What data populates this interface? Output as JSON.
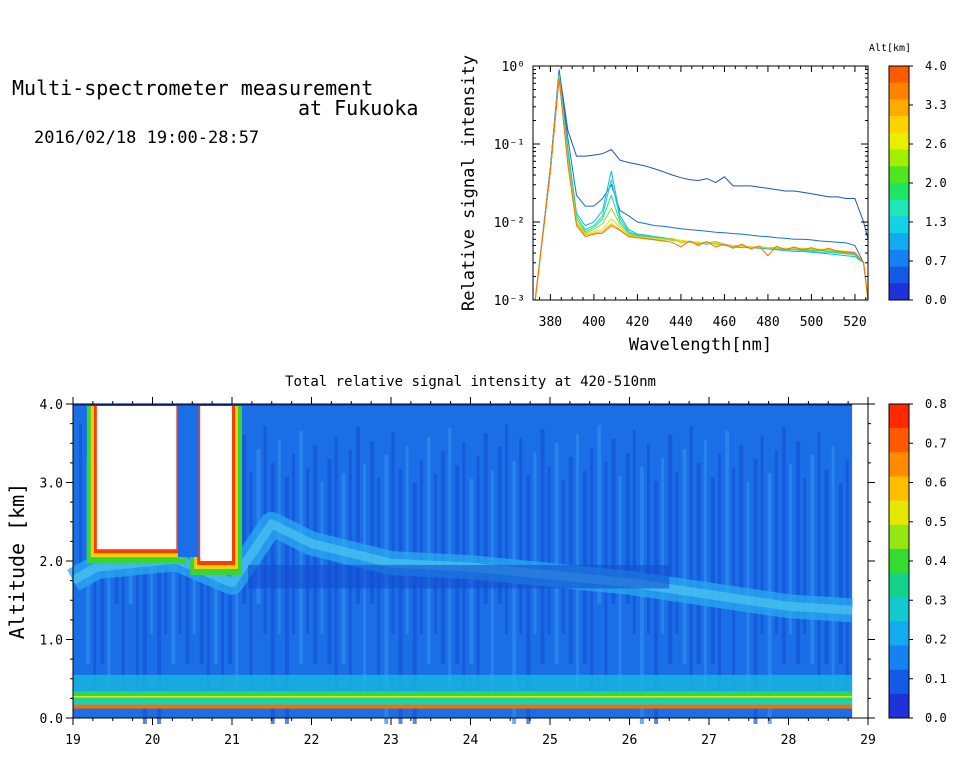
{
  "header": {
    "title_line1": "Multi-spectrometer measurement",
    "title_line2": "at Fukuoka",
    "date_range": "2016/02/18 19:00-28:57"
  },
  "chart_data": [
    {
      "type": "line",
      "xlabel": "Wavelength[nm]",
      "ylabel": "Relative signal intensity",
      "xlim": [
        372,
        526
      ],
      "x_ticks": [
        "380",
        "400",
        "420",
        "440",
        "460",
        "480",
        "500",
        "520"
      ],
      "ylim_log10": [
        -3,
        0
      ],
      "y_scale": "log",
      "y_ticks": [
        "10⁻³",
        "10⁻²",
        "10⁻¹",
        "10⁰"
      ],
      "colorbar": {
        "label": "Alt[km]",
        "ticks": [
          "4.0",
          "3.3",
          "2.6",
          "2.0",
          "1.3",
          "0.7",
          "0.0"
        ],
        "colors": [
          "#ff5a00",
          "#ff8200",
          "#ffaa00",
          "#ffd200",
          "#e6f000",
          "#a0f000",
          "#50e61e",
          "#1ee664",
          "#1ee6b4",
          "#14d2e6",
          "#14aaf0",
          "#1482f0",
          "#145ae6",
          "#1e32dc"
        ]
      },
      "x": [
        373,
        380,
        384,
        388,
        392,
        396,
        400,
        404,
        408,
        412,
        416,
        420,
        424,
        428,
        432,
        436,
        440,
        444,
        448,
        452,
        456,
        460,
        464,
        468,
        472,
        476,
        480,
        484,
        488,
        492,
        496,
        500,
        504,
        508,
        512,
        516,
        520,
        524,
        526
      ],
      "series": [
        {
          "color": "#1e50c8",
          "values": [
            0.001,
            0.05,
            0.9,
            0.15,
            0.07,
            0.07,
            0.072,
            0.075,
            0.085,
            0.062,
            0.058,
            0.055,
            0.052,
            0.048,
            0.044,
            0.04,
            0.037,
            0.035,
            0.034,
            0.036,
            0.032,
            0.038,
            0.029,
            0.029,
            0.029,
            0.028,
            0.027,
            0.026,
            0.025,
            0.025,
            0.024,
            0.023,
            0.022,
            0.021,
            0.021,
            0.02,
            0.02,
            0.01,
            0.006
          ]
        },
        {
          "color": "#146ee6",
          "values": [
            0.001,
            0.05,
            0.85,
            0.12,
            0.022,
            0.016,
            0.016,
            0.02,
            0.03,
            0.014,
            0.012,
            0.01,
            0.0095,
            0.009,
            0.0088,
            0.0085,
            0.0082,
            0.008,
            0.0078,
            0.0076,
            0.0074,
            0.0073,
            0.0071,
            0.007,
            0.0068,
            0.0066,
            0.0065,
            0.0063,
            0.0062,
            0.006,
            0.006,
            0.0059,
            0.0057,
            0.0056,
            0.0055,
            0.0054,
            0.005,
            0.003,
            0.001
          ]
        },
        {
          "color": "#14b4e6",
          "values": [
            0.001,
            0.045,
            0.8,
            0.09,
            0.013,
            0.009,
            0.01,
            0.014,
            0.045,
            0.012,
            0.008,
            0.007,
            0.0068,
            0.0065,
            0.0063,
            0.006,
            0.0058,
            0.0055,
            0.0054,
            0.0052,
            0.0055,
            0.005,
            0.0048,
            0.0047,
            0.0047,
            0.0046,
            0.0045,
            0.0044,
            0.0043,
            0.0042,
            0.0042,
            0.0041,
            0.004,
            0.0039,
            0.0038,
            0.0037,
            0.0036,
            0.003,
            0.001
          ]
        },
        {
          "color": "#1ed2c8",
          "values": [
            0.001,
            0.045,
            0.78,
            0.08,
            0.012,
            0.008,
            0.009,
            0.012,
            0.035,
            0.011,
            0.0075,
            0.0068,
            0.0066,
            0.0064,
            0.0062,
            0.006,
            0.0058,
            0.0056,
            0.0055,
            0.0054,
            0.0056,
            0.0052,
            0.005,
            0.0049,
            0.0048,
            0.0047,
            0.0046,
            0.0045,
            0.0044,
            0.0044,
            0.0043,
            0.0042,
            0.0041,
            0.0041,
            0.004,
            0.0039,
            0.0038,
            0.003,
            0.001
          ]
        },
        {
          "color": "#1ee678",
          "values": [
            0.001,
            0.045,
            0.75,
            0.07,
            0.011,
            0.0075,
            0.0085,
            0.011,
            0.022,
            0.01,
            0.0072,
            0.0067,
            0.0065,
            0.0063,
            0.0061,
            0.0059,
            0.0057,
            0.0055,
            0.0054,
            0.0053,
            0.0055,
            0.0051,
            0.0049,
            0.0049,
            0.0048,
            0.0047,
            0.0046,
            0.0046,
            0.0045,
            0.0045,
            0.0044,
            0.0043,
            0.0043,
            0.0042,
            0.0041,
            0.004,
            0.0039,
            0.003,
            0.001
          ]
        },
        {
          "color": "#78e632",
          "values": [
            0.001,
            0.045,
            0.73,
            0.065,
            0.01,
            0.0072,
            0.008,
            0.0095,
            0.015,
            0.0092,
            0.007,
            0.0066,
            0.0064,
            0.0062,
            0.006,
            0.0058,
            0.0057,
            0.0055,
            0.0054,
            0.0053,
            0.0054,
            0.005,
            0.0049,
            0.0048,
            0.0048,
            0.0047,
            0.0047,
            0.0046,
            0.0046,
            0.0045,
            0.0045,
            0.0044,
            0.0044,
            0.0043,
            0.0042,
            0.0041,
            0.004,
            0.003,
            0.001
          ]
        },
        {
          "color": "#dce614",
          "values": [
            0.001,
            0.045,
            0.72,
            0.06,
            0.01,
            0.007,
            0.0075,
            0.008,
            0.011,
            0.0085,
            0.0068,
            0.0065,
            0.0063,
            0.0062,
            0.006,
            0.0061,
            0.0058,
            0.0056,
            0.0055,
            0.0053,
            0.0055,
            0.0051,
            0.005,
            0.0049,
            0.0048,
            0.0048,
            0.0047,
            0.0047,
            0.0046,
            0.0046,
            0.0046,
            0.0045,
            0.0045,
            0.0044,
            0.0043,
            0.0042,
            0.0041,
            0.003,
            0.001
          ]
        },
        {
          "color": "#ffb400",
          "values": [
            0.001,
            0.045,
            0.71,
            0.058,
            0.0095,
            0.0068,
            0.0072,
            0.0075,
            0.0095,
            0.008,
            0.0066,
            0.0064,
            0.0062,
            0.006,
            0.0058,
            0.0062,
            0.0054,
            0.0056,
            0.0052,
            0.0055,
            0.0052,
            0.005,
            0.0049,
            0.0051,
            0.0047,
            0.0049,
            0.0046,
            0.0048,
            0.0045,
            0.0047,
            0.0045,
            0.0046,
            0.0044,
            0.0045,
            0.0043,
            0.0042,
            0.0041,
            0.003,
            0.001
          ]
        },
        {
          "color": "#ff6e00",
          "values": [
            0.001,
            0.045,
            0.7,
            0.055,
            0.009,
            0.0065,
            0.007,
            0.0072,
            0.009,
            0.0078,
            0.0065,
            0.0063,
            0.0061,
            0.0059,
            0.0057,
            0.0055,
            0.0048,
            0.0057,
            0.005,
            0.0056,
            0.0048,
            0.0052,
            0.0046,
            0.0052,
            0.0045,
            0.0049,
            0.0037,
            0.0049,
            0.0044,
            0.0048,
            0.0044,
            0.0047,
            0.0043,
            0.0046,
            0.0042,
            0.0041,
            0.004,
            0.003,
            0.001
          ]
        }
      ]
    },
    {
      "type": "heatmap",
      "title": "Total relative signal intensity at 420-510nm",
      "xlim": [
        19,
        29
      ],
      "x_ticks": [
        "19",
        "20",
        "21",
        "22",
        "23",
        "24",
        "25",
        "26",
        "27",
        "28",
        "29"
      ],
      "ylabel": "Altitude [km]",
      "ylim": [
        0,
        4
      ],
      "y_ticks": [
        "0.0",
        "1.0",
        "2.0",
        "3.0",
        "4.0"
      ],
      "data_x_end": 28.8,
      "saturated_regions": [
        {
          "x_start": 19.3,
          "x_end": 20.3,
          "y_bottom": 2.15
        },
        {
          "x_start": 20.6,
          "x_end": 21.0,
          "y_bottom": 2.0
        }
      ],
      "cloud_base_km": [
        [
          19.0,
          1.88
        ],
        [
          19.3,
          2.05
        ],
        [
          20.3,
          2.15
        ],
        [
          21.0,
          1.85
        ],
        [
          21.5,
          2.6
        ],
        [
          22.0,
          2.35
        ],
        [
          23.0,
          2.1
        ],
        [
          24.0,
          2.05
        ],
        [
          25.0,
          1.95
        ],
        [
          26.0,
          1.85
        ],
        [
          27.0,
          1.7
        ],
        [
          28.0,
          1.55
        ],
        [
          28.8,
          1.5
        ]
      ],
      "colorbar": {
        "ticks": [
          "0.8",
          "0.7",
          "0.6",
          "0.5",
          "0.4",
          "0.3",
          "0.2",
          "0.1",
          "0.0"
        ],
        "colors": [
          "#ff2800",
          "#ff5a00",
          "#ff8c00",
          "#ffbe00",
          "#e6e600",
          "#96e614",
          "#32dc32",
          "#14d28c",
          "#14c8d2",
          "#14aaf0",
          "#1482f0",
          "#145ae6",
          "#1e32dc"
        ]
      }
    }
  ]
}
